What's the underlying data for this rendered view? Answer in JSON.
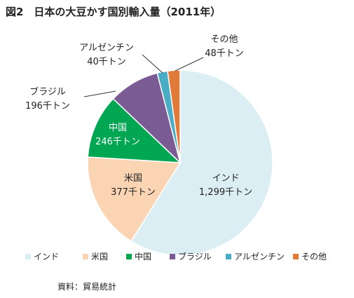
{
  "chart_data": {
    "type": "pie",
    "title": "図2　日本の大豆かす国別輸入量（2011年）",
    "unit": "千トン",
    "categories": [
      "インド",
      "米国",
      "中国",
      "ブラジル",
      "アルゼンチン",
      "その他"
    ],
    "values": [
      1299,
      377,
      246,
      196,
      40,
      48
    ],
    "value_labels": [
      "1,299千トン",
      "377千トン",
      "246千トン",
      "196千トン",
      "40千トン",
      "48千トン"
    ],
    "colors": [
      "#dbeef4",
      "#fbd4b4",
      "#00a651",
      "#7b5b93",
      "#4bacc6",
      "#e07b39"
    ],
    "legend_position": "bottom",
    "source": "資料：貿易統計"
  }
}
